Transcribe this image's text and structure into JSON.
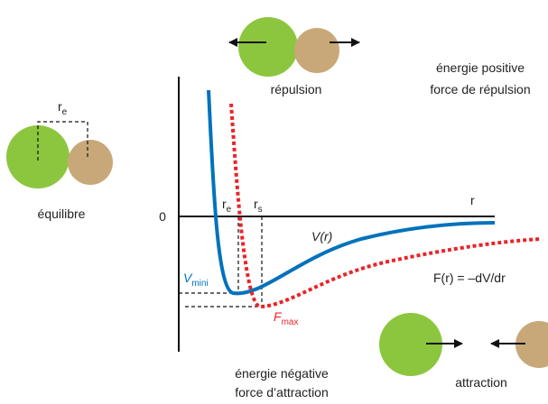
{
  "top": {
    "label": "répulsion",
    "note_line1": "énergie positive",
    "note_line2": "force de répulsion"
  },
  "left": {
    "distance_symbol": "r",
    "distance_sub": "e",
    "label": "équilibre"
  },
  "axes": {
    "origin": "0",
    "x_label": "r"
  },
  "markers": {
    "re_symbol": "r",
    "re_sub": "e",
    "rs_symbol": "r",
    "rs_sub": "s"
  },
  "curves": {
    "potential": "V(r)",
    "force": "F(r) = –dV/dr",
    "vmin_symbol": "V",
    "vmin_sub": "mini",
    "fmax_symbol": "F",
    "fmax_sub": "max"
  },
  "bottom": {
    "note_line1": "énergie négative",
    "note_line2": "force d’attraction",
    "label": "attraction"
  }
}
